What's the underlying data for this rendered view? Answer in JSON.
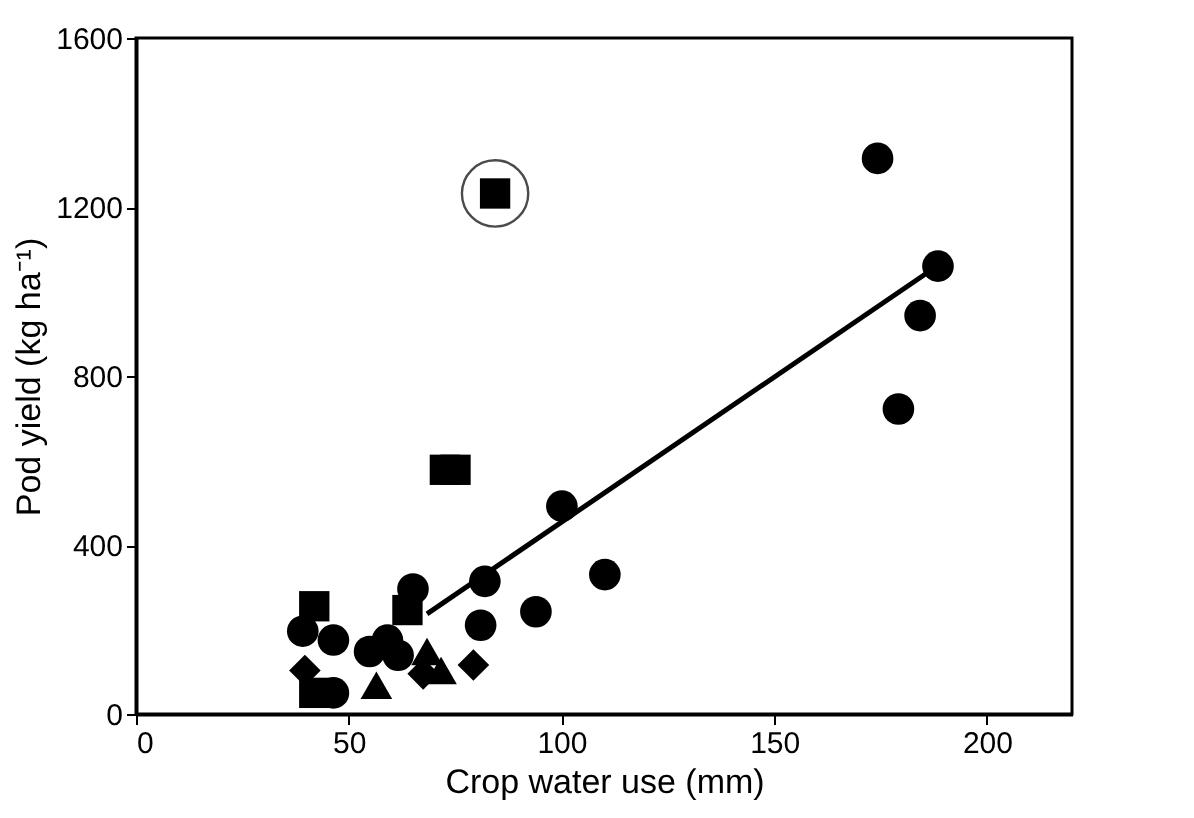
{
  "chart_data": {
    "type": "scatter",
    "xlabel": "Crop water use (mm)",
    "ylabel": "Pod yield (kg ha⁻¹)",
    "xlim": [
      0,
      220
    ],
    "xticks": [
      0,
      50,
      100,
      150,
      200
    ],
    "ylim": [
      0,
      1600
    ],
    "yticks": [
      0,
      400,
      800,
      1200,
      1600
    ],
    "grid": false,
    "series": [
      {
        "color": "#000000",
        "marker": "circle",
        "x": [
          174.3,
          188.5,
          184.3,
          179.2,
          100.1,
          110.2,
          94.0,
          82.0,
          81.0,
          65.1,
          39.2,
          46.4,
          54.9,
          59.1,
          61.6,
          46.4
        ],
        "values": [
          1315,
          1060,
          943,
          722,
          492,
          330,
          242,
          314,
          210,
          296,
          196,
          175,
          148,
          175,
          139,
          50
        ]
      },
      {
        "color": "#000000",
        "marker": "square",
        "x": [
          84.4,
          72.6,
          75.1,
          41.9,
          63.8,
          41.9
        ],
        "values": [
          1232,
          578,
          578,
          255,
          246,
          50
        ]
      },
      {
        "color": "#000000",
        "marker": "triangle",
        "x": [
          68.4,
          71.7,
          56.5
        ],
        "values": [
          148,
          103,
          68
        ]
      },
      {
        "color": "#000000",
        "marker": "diamond",
        "x": [
          79.3,
          39.7,
          67.5
        ],
        "values": [
          116,
          103,
          95
        ]
      },
      {
        "type": "line",
        "color": "#000000",
        "line_style": "solid",
        "marker": "none",
        "x": [
          68.4,
          186.5
        ],
        "values": [
          237,
          1048
        ]
      }
    ]
  }
}
